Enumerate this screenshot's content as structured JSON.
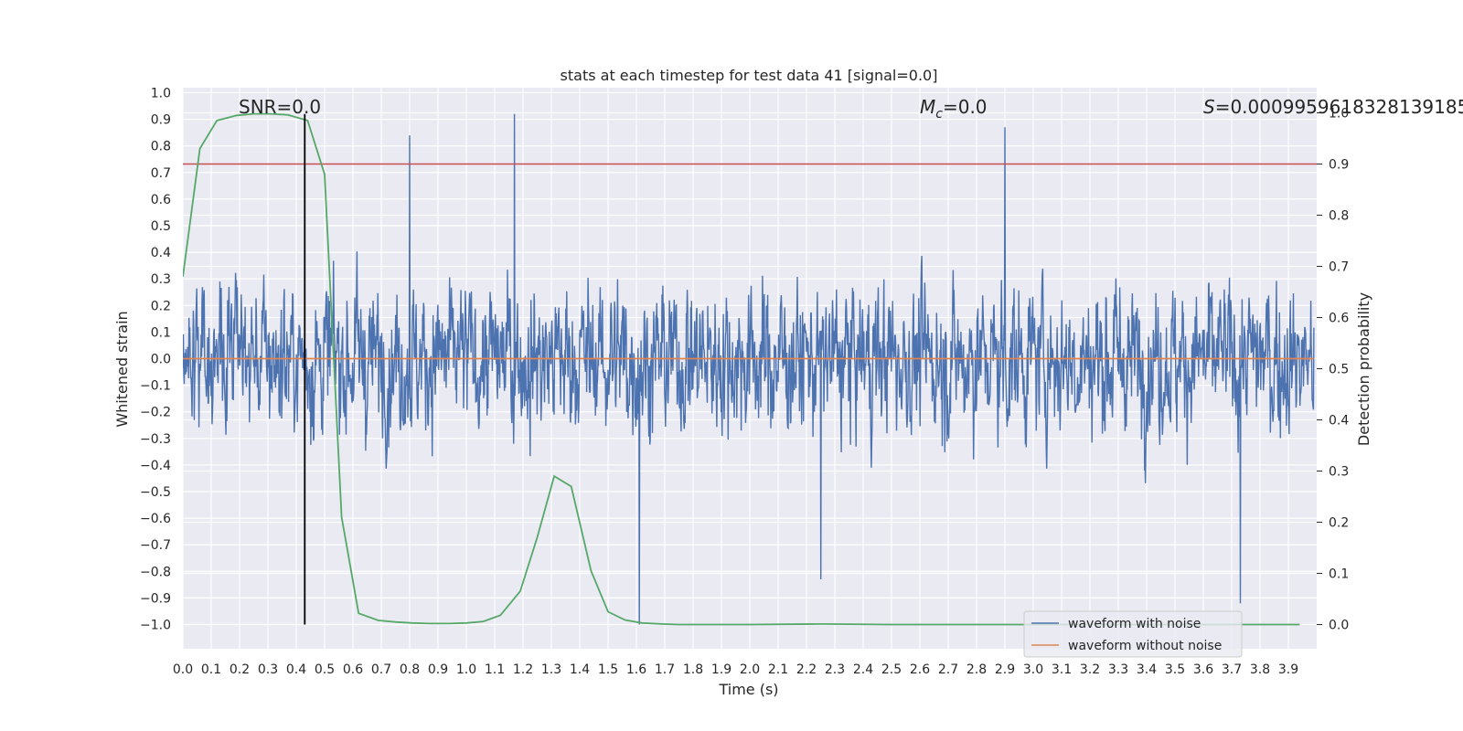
{
  "chart_data": {
    "type": "line",
    "title": "stats at each timestep for test data 41 [signal=0.0]",
    "xlabel": "Time (s)",
    "ylabel": "Whitened strain",
    "y2label": "Detection probability",
    "xlim": [
      0.0,
      3.99
    ],
    "ylim": [
      -1.09,
      1.0
    ],
    "y2lim": [
      -0.05,
      1.0
    ],
    "x_ticks": [
      "0.0",
      "0.1",
      "0.2",
      "0.3",
      "0.4",
      "0.5",
      "0.6",
      "0.7",
      "0.8",
      "0.9",
      "1.0",
      "1.1",
      "1.2",
      "1.3",
      "1.4",
      "1.5",
      "1.6",
      "1.7",
      "1.8",
      "1.9",
      "2.0",
      "2.1",
      "2.2",
      "2.3",
      "2.4",
      "2.5",
      "2.6",
      "2.7",
      "2.8",
      "2.9",
      "3.0",
      "3.1",
      "3.2",
      "3.3",
      "3.4",
      "3.5",
      "3.6",
      "3.7",
      "3.8",
      "3.9"
    ],
    "y_ticks": [
      "1.0",
      "0.9",
      "0.8",
      "0.7",
      "0.6",
      "0.5",
      "0.4",
      "0.3",
      "0.2",
      "0.1",
      "0.0",
      "−0.1",
      "−0.2",
      "−0.3",
      "−0.4",
      "−0.5",
      "−0.6",
      "−0.7",
      "−0.8",
      "−0.9",
      "−1.0"
    ],
    "y2_ticks": [
      "1.0",
      "0.9",
      "0.8",
      "0.7",
      "0.6",
      "0.5",
      "0.4",
      "0.3",
      "0.2",
      "0.1",
      "0.0"
    ],
    "grid": true,
    "legend_position": "bottom-right",
    "series": [
      {
        "name": "waveform with noise",
        "color": "#4c72b0",
        "axis": "left",
        "description_values": "dense noisy whitened strain, 4 s sampled at high rate; peaks near ±0.9",
        "notable_extremes": [
          {
            "x": 1.17,
            "y": 0.92
          },
          {
            "x": 2.9,
            "y": 0.87
          },
          {
            "x": 0.8,
            "y": 0.84
          },
          {
            "x": 1.61,
            "y": -1.0
          },
          {
            "x": 3.73,
            "y": -0.92
          },
          {
            "x": 2.25,
            "y": -0.83
          }
        ],
        "envelope": 0.6
      },
      {
        "name": "waveform without noise",
        "color": "#dd8452",
        "axis": "left",
        "x": [
          0.0,
          3.99
        ],
        "y": [
          0.0,
          0.0
        ]
      },
      {
        "name": "detection probability",
        "color": "#55a868",
        "axis": "right",
        "x": [
          0.0,
          0.06,
          0.12,
          0.19,
          0.25,
          0.31,
          0.37,
          0.44,
          0.5,
          0.56,
          0.62,
          0.69,
          0.75,
          0.81,
          0.87,
          0.94,
          1.0,
          1.06,
          1.12,
          1.19,
          1.25,
          1.31,
          1.37,
          1.44,
          1.5,
          1.56,
          1.62,
          1.69,
          1.75,
          2.0,
          2.25,
          2.5,
          3.0,
          3.5,
          3.94
        ],
        "y": [
          0.68,
          0.93,
          0.985,
          0.995,
          0.998,
          0.998,
          0.996,
          0.985,
          0.88,
          0.21,
          0.022,
          0.008,
          0.005,
          0.003,
          0.002,
          0.002,
          0.003,
          0.006,
          0.018,
          0.065,
          0.17,
          0.29,
          0.27,
          0.105,
          0.025,
          0.009,
          0.003,
          0.001,
          0.0,
          0.0,
          0.001,
          0.0,
          0.0,
          0.0,
          0.0
        ]
      }
    ],
    "threshold_line": {
      "axis": "right",
      "value": 0.9,
      "color": "#c44e52"
    },
    "vertical_marker": {
      "x": 0.43,
      "y_from": -1.0,
      "y_to": 0.92,
      "color": "#000000"
    },
    "annotations": {
      "snr": "SNR=0.0",
      "mc_symbol": "M",
      "mc_sub": "c",
      "mc_value": "=0.0",
      "s_symbol": "S",
      "s_value": "=0.0009959618328139185"
    }
  }
}
